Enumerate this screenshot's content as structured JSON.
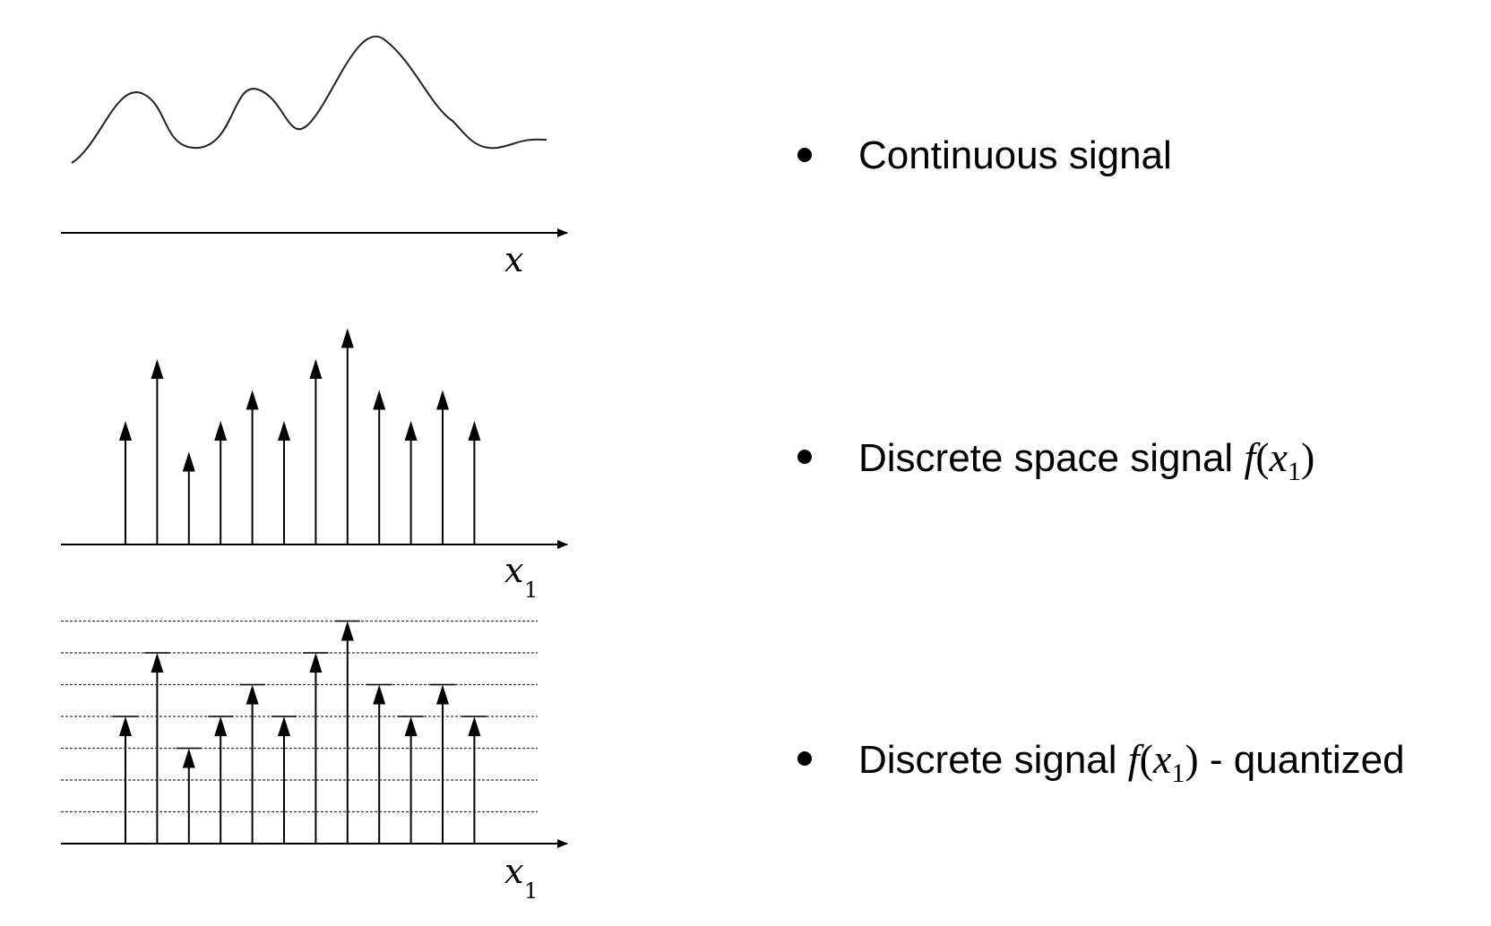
{
  "panels": {
    "continuous": {
      "axis_label": "x",
      "axis_sub": ""
    },
    "discrete_space": {
      "axis_label": "x",
      "axis_sub": "1",
      "sample_levels": [
        4,
        6,
        3,
        4,
        5,
        4,
        6,
        7,
        5,
        4,
        5,
        4
      ]
    },
    "quantized": {
      "axis_label": "x",
      "axis_sub": "1",
      "sample_levels": [
        4,
        6,
        3,
        4,
        5,
        4,
        6,
        7,
        5,
        4,
        5,
        4
      ],
      "quantization_levels": 7
    }
  },
  "bullets": [
    {
      "text": "Continuous signal"
    },
    {
      "text_before": "Discrete space signal",
      "func": "f",
      "open": "(",
      "var": "x",
      "sub": "1",
      "close": ")",
      "text_after": ""
    },
    {
      "text_before": "Discrete signal",
      "func": "f",
      "open": "(",
      "var": "x",
      "sub": "1",
      "close": ")",
      "text_after": " - quantized"
    }
  ]
}
